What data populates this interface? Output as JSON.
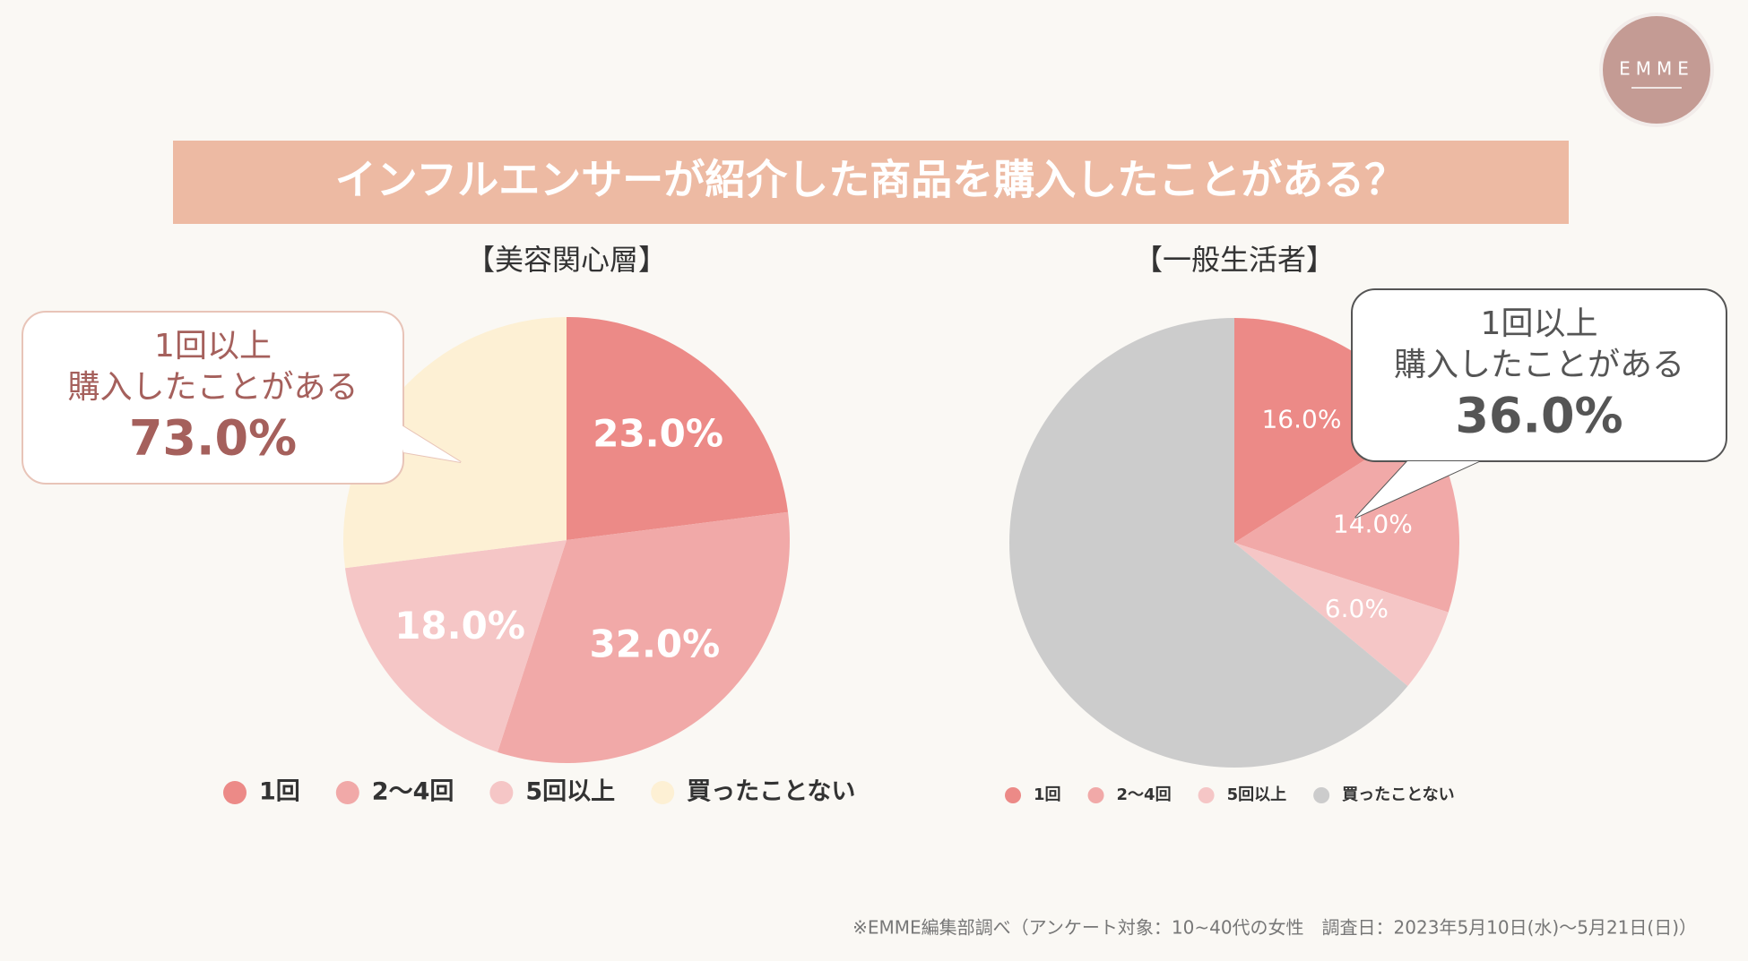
{
  "header": {
    "title": "インフルエンサーが紹介した商品を購入したことがある？",
    "logo": "EMME"
  },
  "chart_data": [
    {
      "type": "pie",
      "title": "【美容関心層】",
      "categories": [
        "1回",
        "2〜4回",
        "5回以上",
        "買ったことない"
      ],
      "values": [
        23,
        32,
        18,
        27
      ],
      "value_labels": [
        "23.0%",
        "32.0%",
        "18.0%",
        null
      ],
      "colors": [
        "#ec8a87",
        "#f1a9a8",
        "#f5c6c6",
        "#fdf0d4"
      ],
      "callout": {
        "lines": [
          "1回以上",
          "購入したことがある"
        ],
        "value": "73.0%"
      }
    },
    {
      "type": "pie",
      "title": "【一般生活者】",
      "categories": [
        "1回",
        "2〜4回",
        "5回以上",
        "買ったことない"
      ],
      "values": [
        16,
        14,
        6,
        64
      ],
      "value_labels": [
        "16.0%",
        "14.0%",
        "6.0%",
        null
      ],
      "colors": [
        "#ec8a87",
        "#f1a9a8",
        "#f5c6c6",
        "#cccccc"
      ],
      "callout": {
        "lines": [
          "1回以上",
          "購入したことがある"
        ],
        "value": "36.0%"
      }
    }
  ],
  "footnote": "※EMME編集部調べ（アンケート対象：10~40代の女性　調査日：2023年5月10日(水)〜5月21日(日)）"
}
